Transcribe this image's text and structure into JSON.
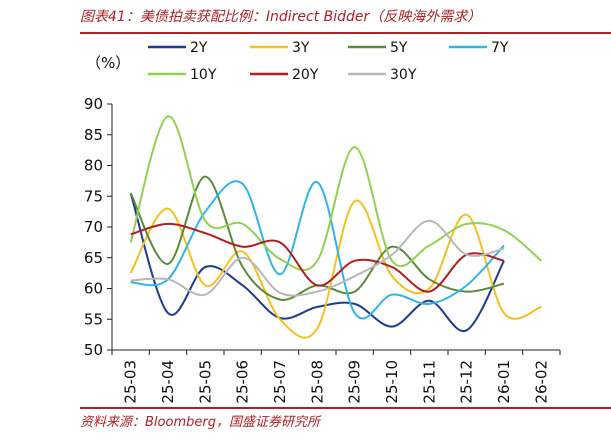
{
  "header": {
    "title": "图表41：美债拍卖获配比例：Indirect Bidder（反映海外需求）"
  },
  "footer": {
    "source": "资料来源：Bloomberg，国盛证券研究所"
  },
  "chart_data": {
    "type": "line",
    "title": "图表41：美债拍卖获配比例：Indirect Bidder（反映海外需求）",
    "ylabel": "（%）",
    "xlabel": "",
    "ylim": [
      50,
      90
    ],
    "yticks": [
      50,
      55,
      60,
      65,
      70,
      75,
      80,
      85,
      90
    ],
    "categories": [
      "25-03",
      "25-04",
      "25-05",
      "25-06",
      "25-07",
      "25-08",
      "25-09",
      "25-10",
      "25-11",
      "25-12",
      "26-01",
      "26-02"
    ],
    "legend_position": "top",
    "series": [
      {
        "name": "2Y",
        "color": "#1f3a93",
        "values": [
          75.5,
          56,
          63.5,
          60.5,
          55.2,
          57,
          57.5,
          53.8,
          58,
          53.2,
          64.5,
          null
        ]
      },
      {
        "name": "3Y",
        "color": "#f5c020",
        "values": [
          62.5,
          73,
          60.5,
          66,
          55,
          53.5,
          74.2,
          62,
          60,
          72,
          56,
          57
        ]
      },
      {
        "name": "5Y",
        "color": "#5a8a3a",
        "values": [
          75.5,
          64,
          78.2,
          63.5,
          58.2,
          60.5,
          59.5,
          66.8,
          61.5,
          59.5,
          60.8,
          null
        ]
      },
      {
        "name": "7Y",
        "color": "#30b4e8",
        "values": [
          61,
          61.5,
          72.5,
          77,
          62.3,
          77.3,
          56,
          59,
          57.5,
          60.5,
          67,
          null
        ]
      },
      {
        "name": "10Y",
        "color": "#92d050",
        "values": [
          67.5,
          88,
          71,
          70.5,
          64.8,
          64.5,
          83,
          64.5,
          67,
          70.5,
          69.5,
          64.5
        ]
      },
      {
        "name": "20Y",
        "color": "#b01e1e",
        "values": [
          68.8,
          70.5,
          69,
          66.8,
          67.5,
          60.5,
          64.5,
          63.5,
          59.5,
          65.5,
          64.5,
          null
        ]
      },
      {
        "name": "30Y",
        "color": "#b8b8b8",
        "values": [
          61.3,
          61.5,
          59,
          65,
          59.3,
          59.5,
          62,
          65.5,
          71,
          65.5,
          66.5,
          null
        ]
      }
    ]
  }
}
